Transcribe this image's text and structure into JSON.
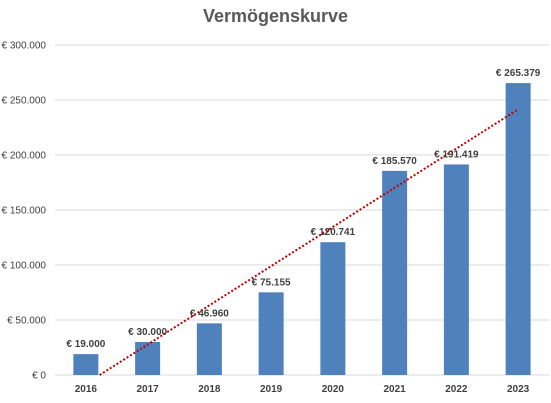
{
  "chart_data": {
    "type": "bar",
    "title": "Vermögenskurve",
    "xlabel": "",
    "ylabel": "",
    "categories": [
      "2016",
      "2017",
      "2018",
      "2019",
      "2020",
      "2021",
      "2022",
      "2023"
    ],
    "values": [
      19000,
      30000,
      46960,
      75155,
      120741,
      185570,
      191419,
      265379
    ],
    "data_labels": [
      "€ 19.000",
      "€ 30.000",
      "€ 46.960",
      "€ 75.155",
      "€ 120.741",
      "€ 185.570",
      "€ 191.419",
      "€ 265.379"
    ],
    "ylim": [
      0,
      300000
    ],
    "y_ticks": [
      0,
      50000,
      100000,
      150000,
      200000,
      250000,
      300000
    ],
    "y_tick_labels": [
      "€ 0",
      "€ 50.000",
      "€ 100.000",
      "€ 150.000",
      "€ 200.000",
      "€ 250.000",
      "€ 300.000"
    ],
    "grid": true,
    "trendline": {
      "type": "linear",
      "style": "dotted"
    },
    "colors": {
      "bar": "#4f81bd",
      "trendline": "#c00000",
      "grid": "#d9d9d9"
    }
  }
}
